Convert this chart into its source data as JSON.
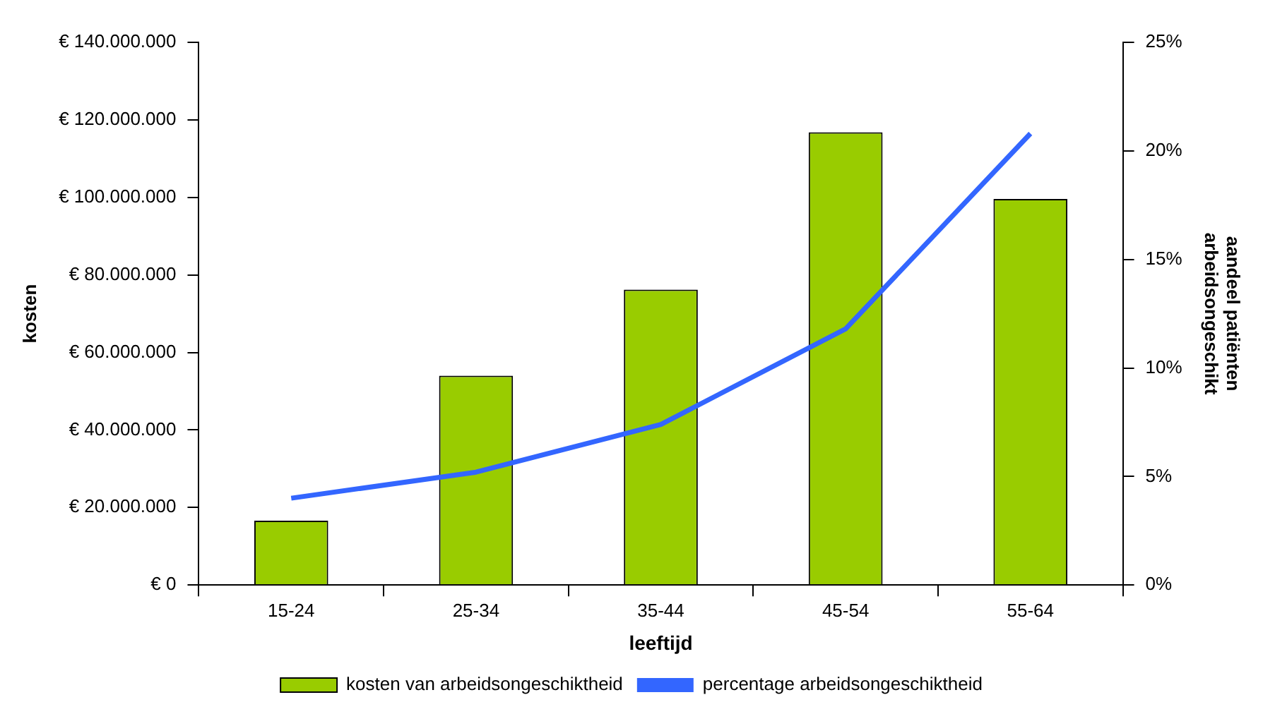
{
  "chart_data": {
    "type": "bar",
    "xlabel": "leeftijd",
    "ylabel": "kosten",
    "y2label": "aandeel patiënten arbeidsongeschikt",
    "categories": [
      "15-24",
      "25-34",
      "35-44",
      "45-54",
      "55-64"
    ],
    "series": [
      {
        "name": "kosten van arbeidsongeschiktheid",
        "color": "#99cc00",
        "values": [
          16600000,
          54000000,
          76200000,
          116800000,
          99600000
        ]
      },
      {
        "name": "percentage arbeidsongeschiktheid",
        "type": "line",
        "axis": "y2",
        "color": "#3366ff",
        "values": [
          4.0,
          5.2,
          7.4,
          11.8,
          20.8
        ]
      }
    ],
    "ylim": [
      0,
      140000000
    ],
    "yticks": [
      {
        "value": 0,
        "label": "€ 0"
      },
      {
        "value": 20000000,
        "label": "€ 20.000.000"
      },
      {
        "value": 40000000,
        "label": "€ 40.000.000"
      },
      {
        "value": 60000000,
        "label": "€ 60.000.000"
      },
      {
        "value": 80000000,
        "label": "€ 80.000.000"
      },
      {
        "value": 100000000,
        "label": "€ 100.000.000"
      },
      {
        "value": 120000000,
        "label": "€ 120.000.000"
      },
      {
        "value": 140000000,
        "label": "€ 140.000.000"
      }
    ],
    "y2lim": [
      0,
      25
    ],
    "y2ticks": [
      {
        "value": 0,
        "label": "0%"
      },
      {
        "value": 5,
        "label": "5%"
      },
      {
        "value": 10,
        "label": "10%"
      },
      {
        "value": 15,
        "label": "15%"
      },
      {
        "value": 20,
        "label": "20%"
      },
      {
        "value": 25,
        "label": "25%"
      }
    ],
    "legend": "bottom",
    "grid": false,
    "marker": "none",
    "line_style": "solid"
  }
}
